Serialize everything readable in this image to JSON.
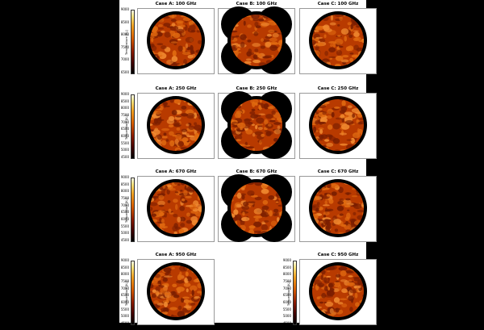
{
  "panels": [
    {
      "title": "Case A: 100 GHz",
      "colorbar": true,
      "case": "A",
      "ticks": [
        "9000",
        "8500",
        "8000",
        "7500",
        "7000",
        "6500"
      ],
      "cbar_label": "Temperature [Kₑ]"
    },
    {
      "title": "Case B: 100 GHz",
      "colorbar": false,
      "case": "B"
    },
    {
      "title": "Case C: 100 GHz",
      "colorbar": false,
      "case": "C"
    },
    {
      "title": "Case A: 250 GHz",
      "colorbar": true,
      "case": "A",
      "ticks": [
        "9000",
        "8500",
        "8000",
        "7500",
        "7000",
        "6500",
        "6000",
        "5500",
        "5000",
        "4500"
      ],
      "cbar_label": "Temperature [Kₑ]"
    },
    {
      "title": "Case B: 250 GHz",
      "colorbar": false,
      "case": "B"
    },
    {
      "title": "Case C: 250 GHz",
      "colorbar": false,
      "case": "C"
    },
    {
      "title": "Case A: 670 GHz",
      "colorbar": true,
      "case": "A",
      "ticks": [
        "9000",
        "8500",
        "8000",
        "7500",
        "7000",
        "6500",
        "6000",
        "5500",
        "5000",
        "4500"
      ],
      "cbar_label": "Temperature [Kₑ]"
    },
    {
      "title": "Case B: 670 GHz",
      "colorbar": false,
      "case": "B"
    },
    {
      "title": "Case C: 670 GHz",
      "colorbar": false,
      "case": "C"
    },
    {
      "title": "Case A: 950 GHz",
      "colorbar": true,
      "case": "A",
      "ticks": [
        "9000",
        "8500",
        "8000",
        "7500",
        "7000",
        "6500",
        "6000",
        "5500",
        "5000",
        "4500"
      ],
      "cbar_label": "Temperature [Kₑ]"
    },
    {
      "title": "Case C: 950 GHz",
      "colorbar": true,
      "case": "C",
      "ticks": [
        "9000",
        "8500",
        "8000",
        "7500",
        "7000",
        "6500",
        "6000",
        "5500",
        "5000",
        "4500"
      ],
      "cbar_label": "Temperature [Kₑ]"
    }
  ],
  "colors": {
    "disk_dark": "#7a1e00",
    "disk_mid": "#b83a00",
    "disk_bright": "#e06a10",
    "limb": "#000000",
    "background": "#000000",
    "page": "#ffffff"
  }
}
